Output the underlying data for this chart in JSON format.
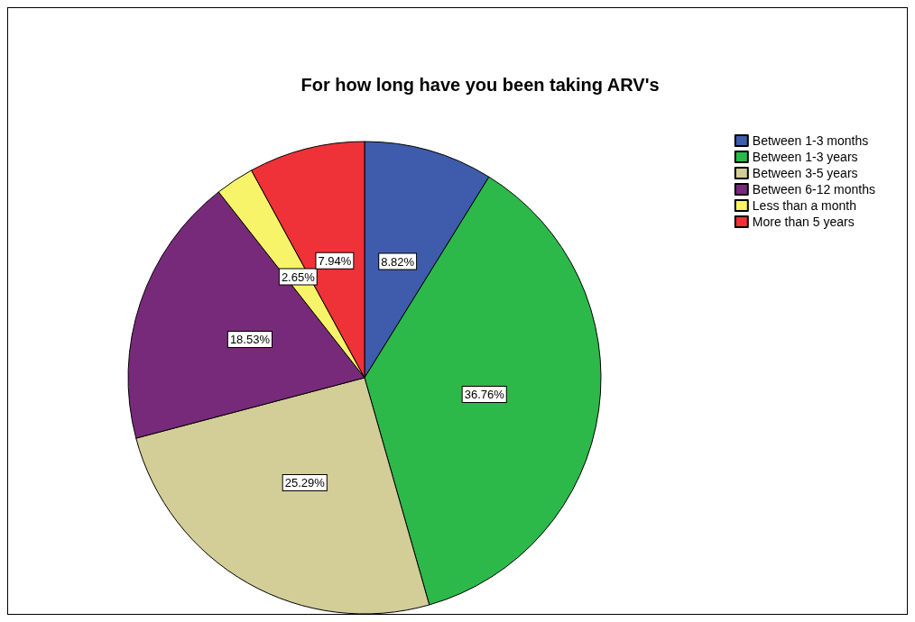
{
  "chart_data": {
    "type": "pie",
    "title": "For how long have you been taking ARV's",
    "categories": [
      "Between 1-3 months",
      "Between 1-3 years",
      "Between 3-5 years",
      "Between 6-12 months",
      "Less than a month",
      "More than 5 years"
    ],
    "values": [
      8.82,
      36.76,
      25.29,
      18.53,
      2.65,
      7.94
    ],
    "colors": [
      "#3f5bab",
      "#2db84a",
      "#d3cd98",
      "#782a7a",
      "#f8f46a",
      "#ef3237"
    ],
    "value_labels": [
      "8.82%",
      "36.76%",
      "25.29%",
      "18.53%",
      "2.65%",
      "7.94%"
    ],
    "legend": "top right"
  }
}
